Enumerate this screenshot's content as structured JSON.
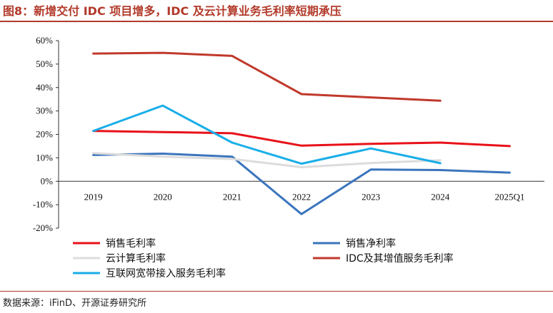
{
  "figure": {
    "title": "图8：新增交付 IDC 项目增多，IDC 及云计算业务毛利率短期承压",
    "source": "数据来源：iFinD、开源证券研究所"
  },
  "chart_data": {
    "type": "line",
    "title": "",
    "xlabel": "",
    "ylabel": "",
    "ylim": [
      -20,
      60
    ],
    "y_ticks": [
      "60%",
      "50%",
      "40%",
      "30%",
      "20%",
      "10%",
      "0%",
      "-10%",
      "-20%"
    ],
    "y_tick_values": [
      60,
      50,
      40,
      30,
      20,
      10,
      0,
      -10,
      -20
    ],
    "categories": [
      "2019",
      "2020",
      "2021",
      "2022",
      "2023",
      "2024",
      "2025Q1"
    ],
    "grid": false,
    "legend_position": "bottom",
    "series": [
      {
        "name": "销售毛利率",
        "color": "#e8111a",
        "values": [
          21.5,
          21.0,
          20.5,
          15.2,
          16.0,
          16.5,
          15.0
        ]
      },
      {
        "name": "销售净利率",
        "color": "#3b75bd",
        "values": [
          11.2,
          11.8,
          10.5,
          -14.0,
          5.0,
          4.8,
          3.7
        ]
      },
      {
        "name": "云计算毛利率",
        "color": "#dcdcdc",
        "values": [
          12.0,
          10.5,
          9.5,
          6.0,
          7.8,
          9.0,
          null
        ]
      },
      {
        "name": "IDC及其增值服务毛利率",
        "color": "#c0392b",
        "values": [
          54.5,
          54.8,
          53.5,
          37.2,
          35.8,
          34.4,
          null
        ]
      },
      {
        "name": "互联网宽带接入服务毛利率",
        "color": "#19aee8",
        "values": [
          21.5,
          32.3,
          16.5,
          7.5,
          14.0,
          7.7,
          null
        ]
      }
    ]
  }
}
